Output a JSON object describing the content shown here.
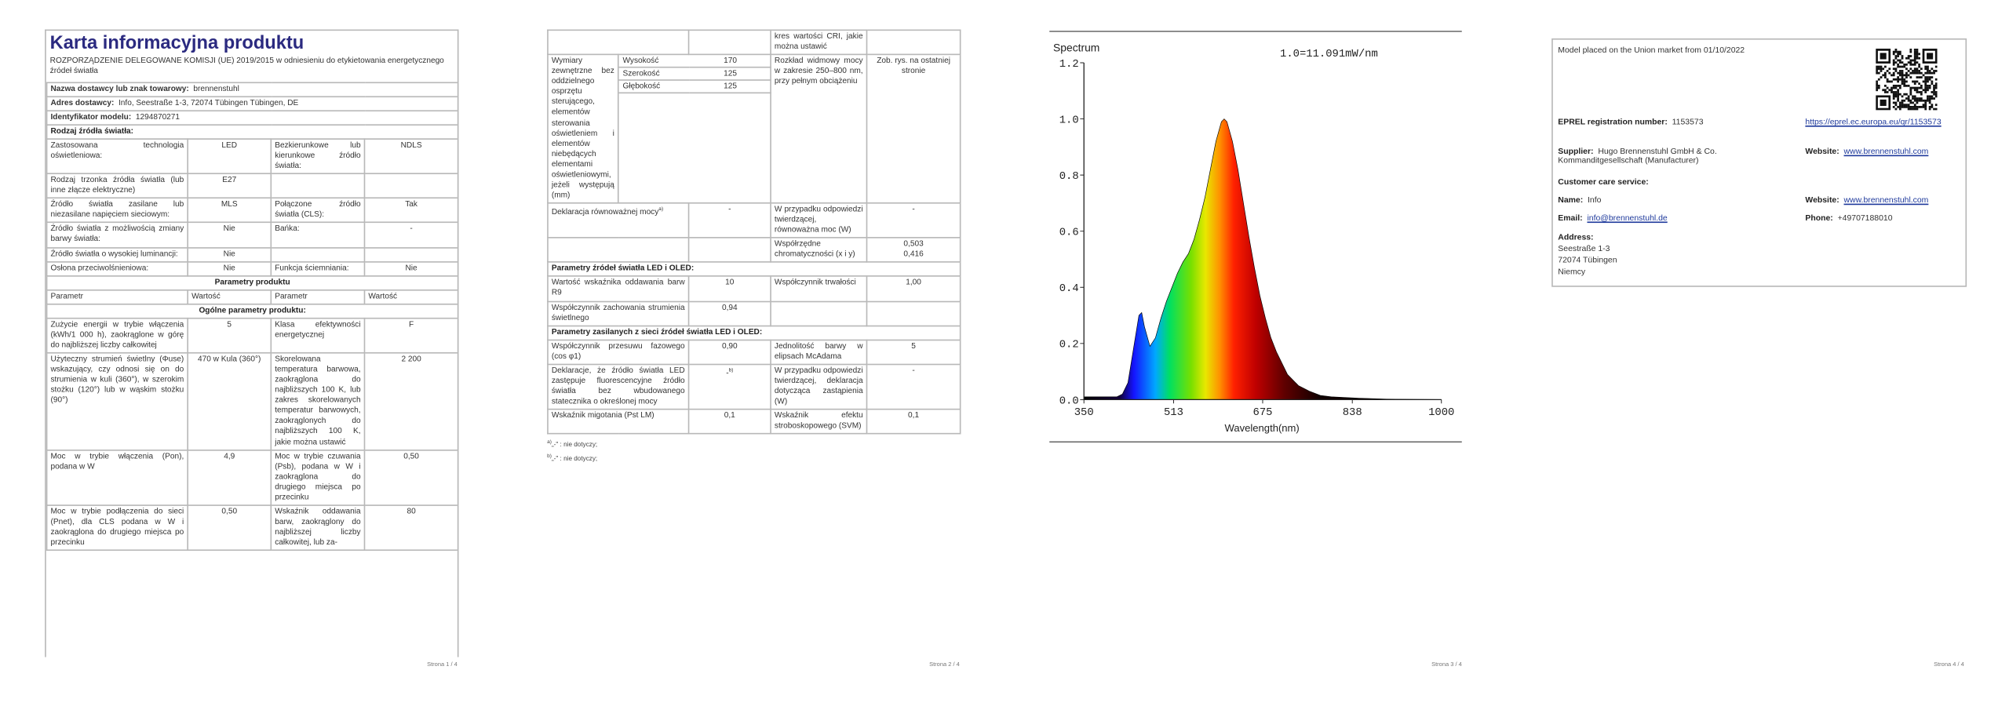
{
  "page1": {
    "title": "Karta informacyjna produktu",
    "regulation": "ROZPORZĄDZENIE DELEGOWANE KOMISJI (UE) 2019/2015 w odniesieniu do etykietowania energetycznego źródeł światła",
    "info": [
      {
        "label": "Nazwa dostawcy lub znak towarowy:",
        "value": "brennenstuhl"
      },
      {
        "label": "Adres dostawcy:",
        "value": "Info, Seestraße 1-3, 72074 Tübingen Tübingen, DE"
      },
      {
        "label": "Identyfikator modelu:",
        "value": "1294870271"
      }
    ],
    "light_type_heading": "Rodzaj źródła światła:",
    "light_type_rows": [
      [
        "Zastosowana technologia oświetleniowa:",
        "LED",
        "Bezkierunkowe lub kierunkowe źródło światła:",
        "NDLS"
      ],
      [
        "Rodzaj trzonka źródła światła (lub inne złącze elektryczne)",
        "E27",
        null,
        null
      ],
      [
        "Źródło światła zasilane lub niezasilane napięciem sieciowym:",
        "MLS",
        "Połączone źródło światła (CLS):",
        "Tak"
      ],
      [
        "Źródło światła z możliwością zmiany barwy światła:",
        "Nie",
        "Bańka:",
        "-"
      ],
      [
        "Źródło światła o wysokiej luminancji:",
        "Nie",
        null,
        null
      ],
      [
        "Osłona przeciwolśnieniowa:",
        "Nie",
        "Funkcja ściemniania:",
        "Nie"
      ]
    ],
    "params_heading": "Parametry produktu",
    "header": [
      "Parametr",
      "Wartość",
      "Parametr",
      "Wartość"
    ],
    "general_heading": "Ogólne parametry produktu:",
    "param_rows": [
      [
        "Zużycie energii w trybie włączenia (kWh/1 000 h), zaokrąglone w górę do najbliższej liczby całkowitej",
        "5",
        "Klasa efektywności energetycznej",
        "F"
      ],
      [
        "Użyteczny strumień świetlny (Φuse) wskazujący, czy odnosi się on do strumienia w kuli (360°), w szerokim stożku (120°) lub w wąskim stożku (90°)",
        "470 w Kula (360°)",
        "Skorelowana temperatura barwowa, zaokrąglona do najbliższych 100 K, lub zakres skorelowanych temperatur barwowych, zaokrąglonych do najbliższych 100 K, jakie można ustawić",
        "2 200"
      ],
      [
        "Moc w trybie włączenia (Pon), podana w W",
        "4,9",
        "Moc w trybie czuwania (Psb), podana w W i zaokrąglona do drugiego miejsca po przecinku",
        "0,50"
      ],
      [
        "Moc w trybie podłączenia do sieci (Pnet), dla CLS podana w W i zaokrąglona do drugiego miejsca po przecinku",
        "0,50",
        "Wskaźnik oddawania barw, zaokrąglony do najbliższej liczby całkowitej, lub za-",
        "80"
      ]
    ]
  },
  "page2": {
    "continuation": "kres wartości CRI, jakie można ustawić",
    "dimensions": {
      "label": "Wymiary zewnętrzne bez oddzielnego osprzętu sterującego, elementów sterowania oświetleniem i elementów niebędących elementami oświetleniowymi, jeżeli występują (mm)",
      "items": [
        {
          "name": "Wysokość",
          "value": "170"
        },
        {
          "name": "Szerokość",
          "value": "125"
        },
        {
          "name": "Głębokość",
          "value": "125"
        }
      ],
      "label2": "Rozkład widmowy mocy w zakresie 250–800 nm, przy pełnym obciążeniu",
      "value2": "Zob. rys. na ostatniej stronie"
    },
    "rows_a": [
      [
        {
          "text": "Deklaracja równoważnej mocy",
          "sup": "a)"
        },
        "-",
        "W przypadku odpowiedzi twierdzącej, równoważna moc (W)",
        "-"
      ],
      [
        null,
        null,
        "Współrzędne chromatyczności (x i y)",
        {
          "lines": [
            "0,503",
            "0,416"
          ]
        }
      ]
    ],
    "led_heading": "Parametry źródeł światła LED i OLED:",
    "rows_b": [
      [
        "Wartość wskaźnika oddawania barw R9",
        "10",
        "Współczynnik trwałości",
        "1,00"
      ],
      [
        "Współczynnik zachowania strumienia świetlnego",
        "0,94",
        null,
        null
      ]
    ],
    "mains_heading": "Parametry zasilanych z sieci źródeł światła LED i OLED:",
    "rows_c": [
      [
        "Współczynnik przesuwu fazowego (cos φ1)",
        "0,90",
        "Jednolitość barwy w elipsach McAdama",
        "5"
      ],
      [
        "Deklaracje, że źródło światła LED zastępuje fluorescencyjne źródło światła bez wbudowanego statecznika o określonej mocy",
        {
          "text": "-",
          "sup": "b)"
        },
        "W przypadku odpowiedzi twierdzącej, deklaracja dotycząca zastąpienia (W)",
        "-"
      ],
      [
        "Wskaźnik migotania (Pst LM)",
        "0,1",
        "Wskaźnik efektu stroboskopowego (SVM)",
        "0,1"
      ]
    ],
    "footnotes": [
      {
        "mark": "a)",
        "text": "„-\" : nie dotyczy;"
      },
      {
        "mark": "b)",
        "text": "„-\" : nie dotyczy;"
      }
    ]
  },
  "chart_data": {
    "type": "area",
    "title": "Spectrum",
    "annotation": "1.0=11.091mW/nm",
    "x_label": "Wavelength(nm)",
    "x": [
      350,
      380,
      410,
      420,
      430,
      440,
      450,
      455,
      460,
      470,
      480,
      490,
      500,
      510,
      520,
      530,
      540,
      550,
      560,
      570,
      580,
      590,
      600,
      605,
      610,
      620,
      630,
      640,
      650,
      660,
      670,
      680,
      690,
      700,
      720,
      740,
      760,
      780,
      800,
      850,
      900,
      1000
    ],
    "values": [
      0.01,
      0.01,
      0.01,
      0.02,
      0.06,
      0.18,
      0.3,
      0.31,
      0.26,
      0.19,
      0.22,
      0.29,
      0.35,
      0.4,
      0.45,
      0.49,
      0.52,
      0.57,
      0.64,
      0.72,
      0.82,
      0.92,
      0.99,
      1.0,
      0.99,
      0.92,
      0.82,
      0.7,
      0.58,
      0.47,
      0.37,
      0.29,
      0.22,
      0.17,
      0.09,
      0.05,
      0.03,
      0.015,
      0.01,
      0.005,
      0.002,
      0
    ],
    "xlim": [
      350,
      1000
    ],
    "ylim": [
      0,
      1.2
    ],
    "xticks": [
      350,
      513,
      675,
      838,
      1000
    ],
    "yticks": [
      {
        "value": 0,
        "label": "0.0"
      },
      {
        "value": 0.2,
        "label": "0.2"
      },
      {
        "value": 0.4,
        "label": "0.4"
      },
      {
        "value": 0.6,
        "label": "0.6"
      },
      {
        "value": 0.8,
        "label": "0.8"
      },
      {
        "value": 1,
        "label": "1.0"
      },
      {
        "value": 1.2,
        "label": "1.2"
      }
    ]
  },
  "page4": {
    "market": "Model placed on the Union market from 01/10/2022",
    "eprel_label": "EPREL registration number:",
    "eprel_value": "1153573",
    "eprel_link": "https://eprel.ec.europa.eu/qr/1153573",
    "supplier_label": "Supplier:",
    "supplier_value": "Hugo Brennenstuhl GmbH & Co. Kommanditgesellschaft (Manufacturer)",
    "supplier_website_label": "Website:",
    "supplier_website": "www.brennenstuhl.com",
    "customer_care": "Customer care service:",
    "name_label": "Name:",
    "name_value": "Info",
    "website_label": "Website:",
    "website": "www.brennenstuhl.com",
    "email_label": "Email:",
    "email": "info@brennenstuhl.de",
    "phone_label": "Phone:",
    "phone": "+49707188010",
    "address_label": "Address:",
    "address_lines": [
      "Seestraße 1-3",
      "72074 Tübingen",
      "Niemcy"
    ]
  },
  "footers": [
    "Strona 1 / 4",
    "Strona 2 / 4",
    "Strona 3 / 4",
    "Strona 4 / 4"
  ]
}
